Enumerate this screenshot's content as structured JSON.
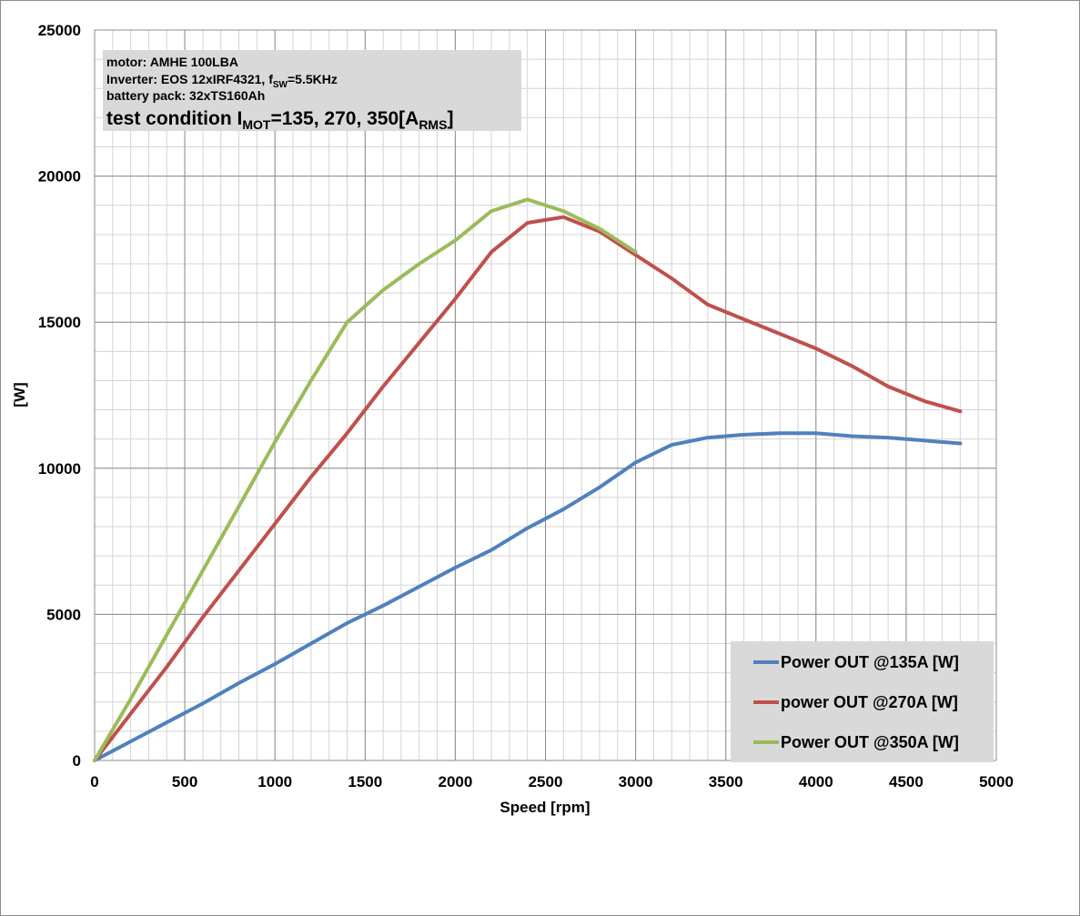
{
  "chart_data": {
    "type": "line",
    "xlabel": "Speed [rpm]",
    "ylabel": "[W]",
    "xlim": [
      0,
      5000
    ],
    "ylim": [
      0,
      25000
    ],
    "x_ticks": [
      0,
      500,
      1000,
      1500,
      2000,
      2500,
      3000,
      3500,
      4000,
      4500,
      5000
    ],
    "y_ticks": [
      0,
      5000,
      10000,
      15000,
      20000,
      25000
    ],
    "x_tick_labels": [
      "0",
      "500",
      "1000",
      "1500",
      "2000",
      "2500",
      "3000",
      "3500",
      "4000",
      "4500",
      "5000"
    ],
    "y_tick_labels": [
      "0",
      "5000",
      "10000",
      "15000",
      "20000",
      "25000"
    ],
    "grid": true,
    "legend_position": "bottom-right",
    "annotation": {
      "line1": "motor: AMHE 100LBA",
      "line2_pre": "Inverter: EOS 12xIRF4321, f",
      "line2_sub": "SW",
      "line2_post": "=5.5KHz",
      "line3": "battery pack: 32xTS160Ah",
      "line4_pre": "test condition I",
      "line4_sub1": "MOT",
      "line4_mid": "=135, 270, 350[A",
      "line4_sub2": "RMS",
      "line4_post": "]"
    },
    "series": [
      {
        "name": "Power OUT @135A  [W]",
        "color": "#4f81bd",
        "x": [
          0,
          200,
          400,
          600,
          800,
          1000,
          1200,
          1400,
          1600,
          1800,
          2000,
          2200,
          2400,
          2600,
          2800,
          3000,
          3200,
          3400,
          3600,
          3800,
          4000,
          4200,
          4400,
          4600,
          4800
        ],
        "y": [
          0,
          650,
          1300,
          1950,
          2650,
          3300,
          4000,
          4700,
          5300,
          5950,
          6600,
          7200,
          7950,
          8600,
          9350,
          10200,
          10800,
          11050,
          11150,
          11200,
          11200,
          11100,
          11050,
          10950,
          10850
        ]
      },
      {
        "name": "power OUT @270A  [W]",
        "color": "#c0504d",
        "x": [
          0,
          200,
          400,
          600,
          800,
          1000,
          1200,
          1400,
          1600,
          1800,
          2000,
          2200,
          2400,
          2600,
          2800,
          3000,
          3200,
          3400,
          3600,
          3800,
          4000,
          4200,
          4400,
          4600,
          4800
        ],
        "y": [
          0,
          1600,
          3200,
          4900,
          6500,
          8100,
          9700,
          11200,
          12800,
          14300,
          15800,
          17400,
          18400,
          18600,
          18100,
          17300,
          16500,
          15600,
          15100,
          14600,
          14100,
          13500,
          12800,
          12300,
          11950
        ]
      },
      {
        "name": "Power OUT @350A  [W]",
        "color": "#9bbb59",
        "x": [
          0,
          200,
          400,
          600,
          800,
          1000,
          1200,
          1400,
          1600,
          1800,
          2000,
          2200,
          2400,
          2600,
          2800,
          3000
        ],
        "y": [
          0,
          2100,
          4300,
          6500,
          8700,
          10900,
          13000,
          15000,
          16100,
          17000,
          17800,
          18800,
          19200,
          18800,
          18200,
          17400
        ]
      }
    ]
  }
}
